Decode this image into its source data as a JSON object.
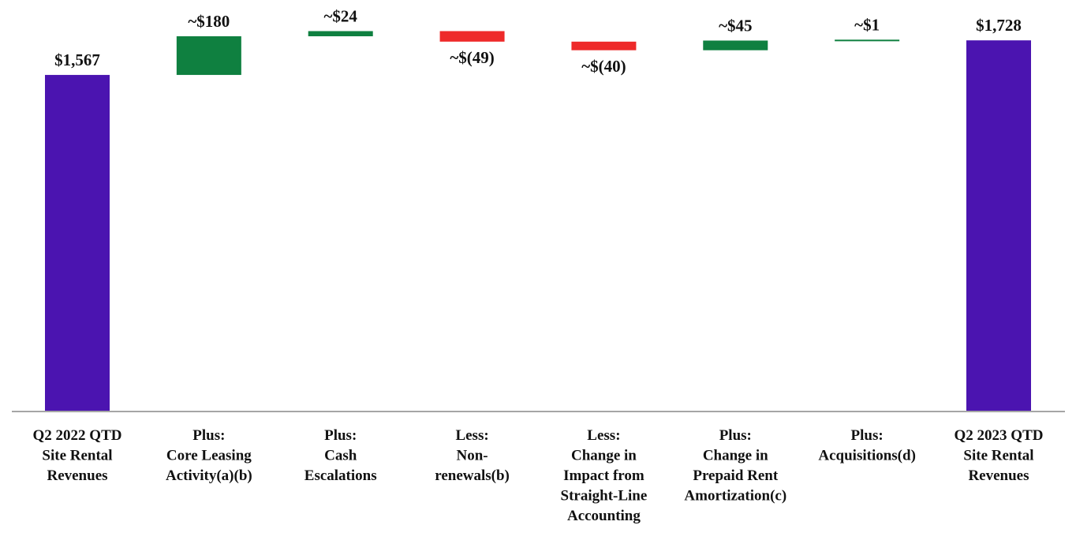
{
  "chart_data": {
    "type": "bar",
    "subtype": "waterfall",
    "title": "",
    "xlabel": "",
    "ylabel": "",
    "grid": false,
    "legend": "none",
    "ylim": [
      0,
      1800
    ],
    "categories": [
      [
        "Q2 2022 QTD",
        "Site Rental",
        "Revenues"
      ],
      [
        "Plus:",
        "Core Leasing",
        "Activity(a)(b)"
      ],
      [
        "Plus:",
        "Cash",
        "Escalations"
      ],
      [
        "Less:",
        "Non-",
        "renewals(b)"
      ],
      [
        "Less:",
        "Change in",
        "Impact from",
        "Straight-Line",
        "Accounting"
      ],
      [
        "Plus:",
        "Change in",
        "Prepaid Rent",
        "Amortization(c)"
      ],
      [
        "Plus:",
        "Acquisitions(d)"
      ],
      [
        "Q2 2023 QTD",
        "Site Rental",
        "Revenues"
      ]
    ],
    "bars": [
      {
        "kind": "total",
        "value": 1567,
        "label": "$1,567"
      },
      {
        "kind": "increase",
        "value": 180,
        "label": "~$180"
      },
      {
        "kind": "increase",
        "value": 24,
        "label": "~$24"
      },
      {
        "kind": "decrease",
        "value": -49,
        "label": "~$(49)"
      },
      {
        "kind": "decrease",
        "value": -40,
        "label": "~$(40)"
      },
      {
        "kind": "increase",
        "value": 45,
        "label": "~$45"
      },
      {
        "kind": "increase",
        "value": 1,
        "label": "~$1"
      },
      {
        "kind": "total",
        "value": 1728,
        "label": "$1,728"
      }
    ],
    "colors": {
      "total": "#4b14b0",
      "increase": "#0f8040",
      "decrease": "#ee2a2a",
      "axis": "#a6a6a6"
    }
  }
}
